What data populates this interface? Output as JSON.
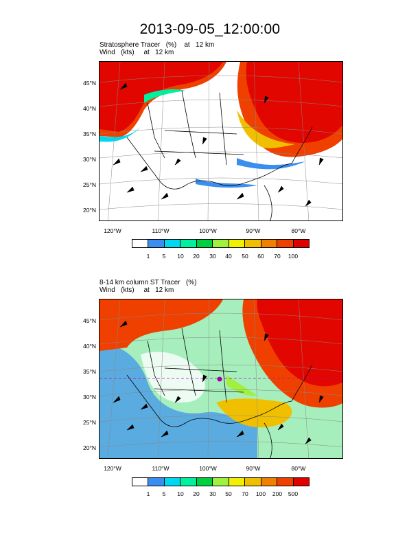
{
  "title": "2013-09-05_12:00:00",
  "panels": [
    {
      "line1": "Stratosphere Tracer   (%)    at   12 km",
      "line2": "Wind   (kts)     at   12 km",
      "colorbar_labels": [
        "1",
        "5",
        "10",
        "20",
        "30",
        "40",
        "50",
        "60",
        "70",
        "100"
      ]
    },
    {
      "line1": "8-14 km column ST Tracer   (%)",
      "line2": "Wind   (kts)     at   12 km",
      "colorbar_labels": [
        "1",
        "5",
        "10",
        "20",
        "30",
        "50",
        "70",
        "100",
        "200",
        "500"
      ]
    }
  ],
  "lat_labels": [
    "45°N",
    "40°N",
    "35°N",
    "30°N",
    "25°N",
    "20°N"
  ],
  "lon_labels": [
    "120°W",
    "110°W",
    "100°W",
    "90°W",
    "80°W"
  ],
  "colorbar_colors": [
    "#ffffff",
    "#3a8ef0",
    "#00d8f0",
    "#00f0a0",
    "#00d040",
    "#a0f040",
    "#f0f000",
    "#f0c000",
    "#f08000",
    "#f04000",
    "#e00000"
  ],
  "colors": {
    "land_line": "#000000",
    "tracer_high": "#e83010",
    "tracer_mid": "#f07000"
  }
}
